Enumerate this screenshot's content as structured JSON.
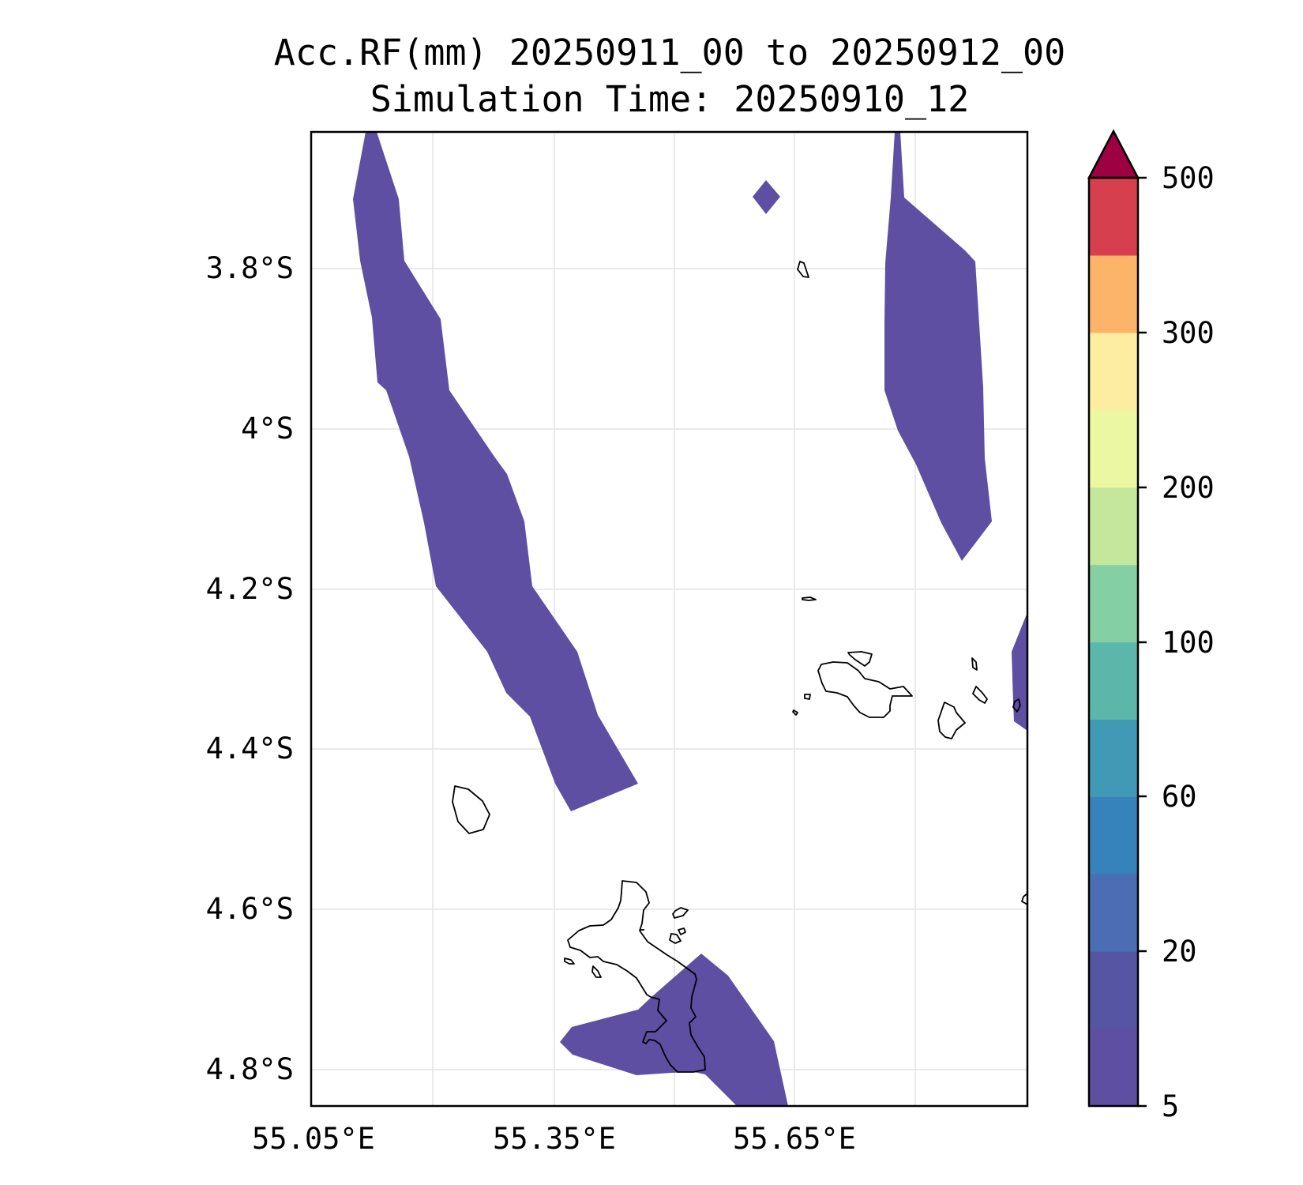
{
  "title": {
    "line1": "Acc.RF(mm) 20250911_00 to 20250912_00",
    "line2": "Simulation Time: 20250910_12"
  },
  "axes": {
    "x_ticks": [
      "55.05°E",
      "55.35°E",
      "55.65°E"
    ],
    "y_ticks": [
      "3.8°S",
      "4°S",
      "4.2°S",
      "4.4°S",
      "4.6°S",
      "4.8°S"
    ]
  },
  "colorbar": {
    "labels": [
      "5",
      "20",
      "60",
      "100",
      "200",
      "300",
      "500"
    ],
    "levels": [
      5,
      10,
      20,
      40,
      60,
      80,
      100,
      150,
      200,
      250,
      300,
      400,
      500
    ],
    "colors": [
      "#5e4fa2",
      "#5555a4",
      "#4a6db3",
      "#3682ba",
      "#4199b6",
      "#5cb7aa",
      "#85cfa5",
      "#c4e79b",
      "#ecf7a2",
      "#fdeda0",
      "#fbb468",
      "#d6404e"
    ],
    "extend_color": "#9e0142"
  },
  "colors": {
    "rain_fill": "#5e4fa2",
    "coast": "#000000",
    "grid": "#e4e4e4"
  },
  "map": {
    "lon_ticks": [
      55.05,
      55.35,
      55.65
    ],
    "lat_ticks": [
      -3.8,
      -4.0,
      -4.2,
      -4.4,
      -4.6,
      -4.8
    ],
    "rain_bin_mm": "5-10"
  }
}
